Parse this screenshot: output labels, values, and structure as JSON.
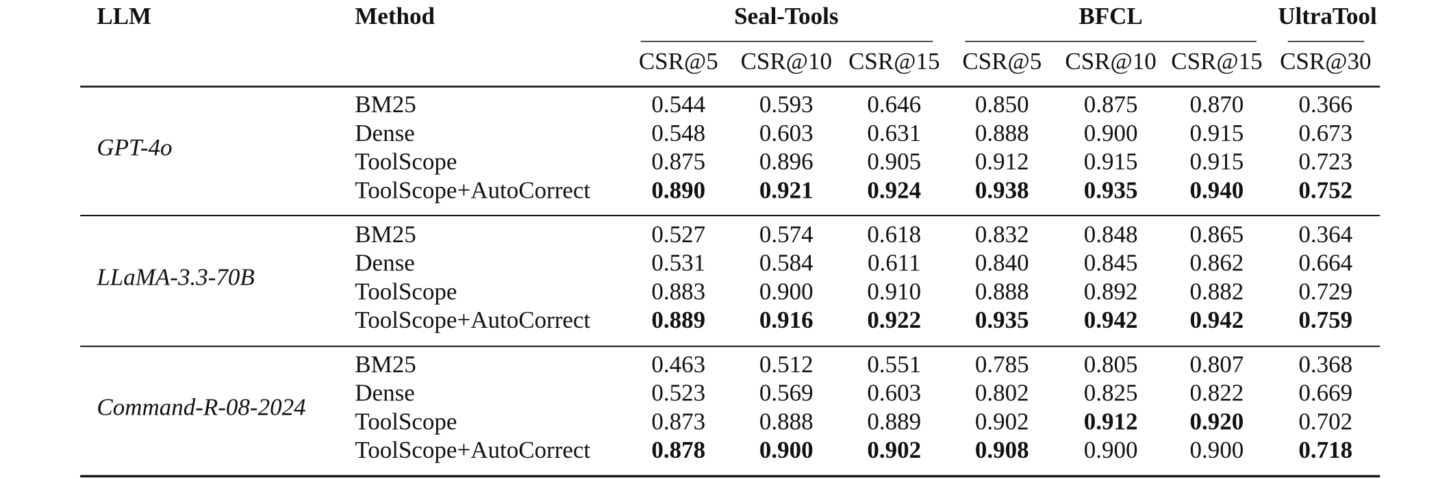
{
  "table": {
    "header": {
      "llm": "LLM",
      "method": "Method",
      "groups": [
        {
          "name": "Seal-Tools",
          "metrics": [
            "CSR@5",
            "CSR@10",
            "CSR@15"
          ]
        },
        {
          "name": "BFCL",
          "metrics": [
            "CSR@5",
            "CSR@10",
            "CSR@15"
          ]
        },
        {
          "name": "UltraTool",
          "metrics": [
            "CSR@30"
          ]
        }
      ]
    },
    "blocks": [
      {
        "llm": "GPT-4o",
        "rows": [
          {
            "method": "BM25",
            "values": [
              "0.544",
              "0.593",
              "0.646",
              "0.850",
              "0.875",
              "0.870",
              "0.366"
            ],
            "bold": [
              false,
              false,
              false,
              false,
              false,
              false,
              false
            ]
          },
          {
            "method": "Dense",
            "values": [
              "0.548",
              "0.603",
              "0.631",
              "0.888",
              "0.900",
              "0.915",
              "0.673"
            ],
            "bold": [
              false,
              false,
              false,
              false,
              false,
              false,
              false
            ]
          },
          {
            "method": "ToolScope",
            "values": [
              "0.875",
              "0.896",
              "0.905",
              "0.912",
              "0.915",
              "0.915",
              "0.723"
            ],
            "bold": [
              false,
              false,
              false,
              false,
              false,
              false,
              false
            ]
          },
          {
            "method": "ToolScope+AutoCorrect",
            "values": [
              "0.890",
              "0.921",
              "0.924",
              "0.938",
              "0.935",
              "0.940",
              "0.752"
            ],
            "bold": [
              true,
              true,
              true,
              true,
              true,
              true,
              true
            ]
          }
        ]
      },
      {
        "llm": "LLaMA-3.3-70B",
        "rows": [
          {
            "method": "BM25",
            "values": [
              "0.527",
              "0.574",
              "0.618",
              "0.832",
              "0.848",
              "0.865",
              "0.364"
            ],
            "bold": [
              false,
              false,
              false,
              false,
              false,
              false,
              false
            ]
          },
          {
            "method": "Dense",
            "values": [
              "0.531",
              "0.584",
              "0.611",
              "0.840",
              "0.845",
              "0.862",
              "0.664"
            ],
            "bold": [
              false,
              false,
              false,
              false,
              false,
              false,
              false
            ]
          },
          {
            "method": "ToolScope",
            "values": [
              "0.883",
              "0.900",
              "0.910",
              "0.888",
              "0.892",
              "0.882",
              "0.729"
            ],
            "bold": [
              false,
              false,
              false,
              false,
              false,
              false,
              false
            ]
          },
          {
            "method": "ToolScope+AutoCorrect",
            "values": [
              "0.889",
              "0.916",
              "0.922",
              "0.935",
              "0.942",
              "0.942",
              "0.759"
            ],
            "bold": [
              true,
              true,
              true,
              true,
              true,
              true,
              true
            ]
          }
        ]
      },
      {
        "llm": "Command-R-08-2024",
        "rows": [
          {
            "method": "BM25",
            "values": [
              "0.463",
              "0.512",
              "0.551",
              "0.785",
              "0.805",
              "0.807",
              "0.368"
            ],
            "bold": [
              false,
              false,
              false,
              false,
              false,
              false,
              false
            ]
          },
          {
            "method": "Dense",
            "values": [
              "0.523",
              "0.569",
              "0.603",
              "0.802",
              "0.825",
              "0.822",
              "0.669"
            ],
            "bold": [
              false,
              false,
              false,
              false,
              false,
              false,
              false
            ]
          },
          {
            "method": "ToolScope",
            "values": [
              "0.873",
              "0.888",
              "0.889",
              "0.902",
              "0.912",
              "0.920",
              "0.702"
            ],
            "bold": [
              false,
              false,
              false,
              false,
              true,
              true,
              false
            ]
          },
          {
            "method": "ToolScope+AutoCorrect",
            "values": [
              "0.878",
              "0.900",
              "0.902",
              "0.908",
              "0.900",
              "0.900",
              "0.718"
            ],
            "bold": [
              true,
              true,
              true,
              true,
              false,
              false,
              true
            ]
          }
        ]
      }
    ]
  }
}
